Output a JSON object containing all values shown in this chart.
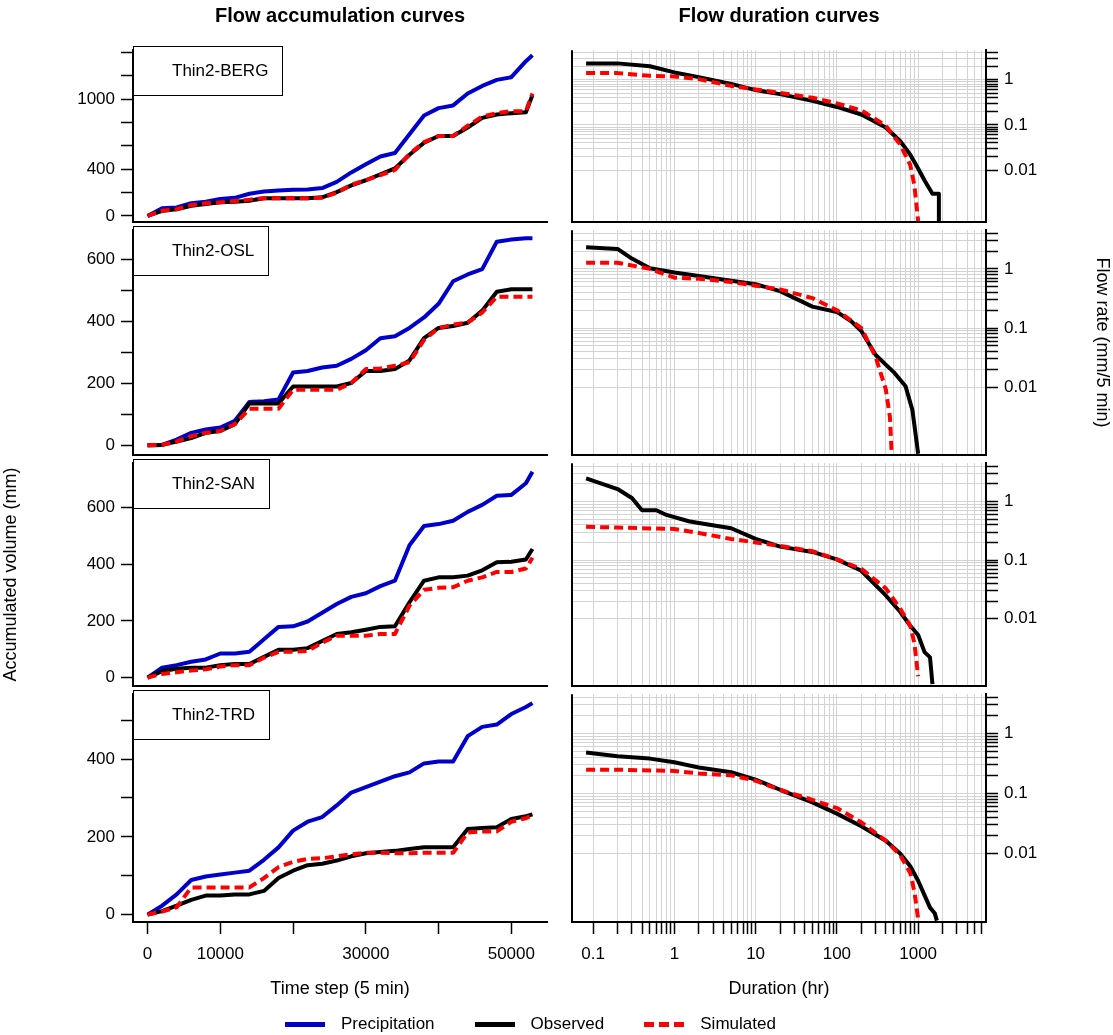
{
  "chart_data": [
    {
      "type": "line",
      "title": "Flow accumulation curves",
      "annotations": [
        "Thin2-BERG"
      ],
      "tick_labels": "y",
      "x": [
        0,
        2000,
        4000,
        6000,
        8000,
        10000,
        12000,
        14000,
        16000,
        18000,
        20000,
        22000,
        24000,
        26000,
        28000,
        30000,
        32000,
        34000,
        36000,
        38000,
        40000,
        42000,
        44000,
        46000,
        48000,
        50000,
        52000,
        52900
      ],
      "xlim": [
        -2000,
        54900
      ],
      "ylim": [
        -50,
        1420
      ],
      "yticks": [
        0,
        {
          "value": 200,
          "label": null
        },
        400,
        {
          "value": 600,
          "label": null
        },
        {
          "value": 800,
          "label": null
        },
        1000,
        {
          "value": 1200,
          "label": null
        },
        {
          "value": 1400,
          "label": null
        }
      ],
      "series": [
        {
          "color": "#0000cd",
          "values": [
            0,
            67,
            73,
            110,
            122,
            146,
            155,
            190,
            210,
            219,
            224,
            227,
            239,
            292,
            373,
            443,
            510,
            539,
            700,
            860,
            924,
            947,
            1049,
            1114,
            1166,
            1189,
            1326,
            1376
          ]
        },
        {
          "color": "#000000",
          "values": [
            0,
            44,
            58,
            87,
            102,
            117,
            122,
            131,
            152,
            152,
            152,
            152,
            160,
            204,
            262,
            306,
            356,
            408,
            525,
            627,
            685,
            685,
            758,
            840,
            869,
            880,
            889,
            1035
          ]
        },
        {
          "color": "#ff0000",
          "line_style": "dashed",
          "values": [
            0,
            44,
            58,
            93,
            108,
            117,
            128,
            140,
            152,
            152,
            152,
            152,
            157,
            198,
            268,
            306,
            350,
            394,
            530,
            633,
            685,
            685,
            773,
            851,
            880,
            898,
            898,
            1049
          ]
        }
      ]
    },
    {
      "type": "line",
      "title": "Flow duration curves",
      "log": "xy",
      "grid": true,
      "tick_labels": "y",
      "xlim": [
        0.055,
        6840
      ],
      "xticks": [
        0.1,
        {
          "value": 0.2,
          "label": null
        },
        {
          "value": 0.3,
          "label": null
        },
        {
          "value": 0.4,
          "label": null
        },
        {
          "value": 0.5,
          "label": null
        },
        {
          "value": 0.6,
          "label": null
        },
        {
          "value": 0.7,
          "label": null
        },
        {
          "value": 0.8,
          "label": null
        },
        {
          "value": 0.9,
          "label": null
        },
        1,
        {
          "value": 2,
          "label": null
        },
        {
          "value": 3,
          "label": null
        },
        {
          "value": 4,
          "label": null
        },
        {
          "value": 5,
          "label": null
        },
        {
          "value": 6,
          "label": null
        },
        {
          "value": 7,
          "label": null
        },
        {
          "value": 8,
          "label": null
        },
        {
          "value": 9,
          "label": null
        },
        10,
        {
          "value": 20,
          "label": null
        },
        {
          "value": 30,
          "label": null
        },
        {
          "value": 40,
          "label": null
        },
        {
          "value": 50,
          "label": null
        },
        {
          "value": 60,
          "label": null
        },
        {
          "value": 70,
          "label": null
        },
        {
          "value": 80,
          "label": null
        },
        {
          "value": 90,
          "label": null
        },
        100,
        {
          "value": 200,
          "label": null
        },
        {
          "value": 300,
          "label": null
        },
        {
          "value": 400,
          "label": null
        },
        {
          "value": 500,
          "label": null
        },
        {
          "value": 600,
          "label": null
        },
        {
          "value": 700,
          "label": null
        },
        {
          "value": 800,
          "label": null
        },
        {
          "value": 900,
          "label": null
        },
        1000,
        {
          "value": 2000,
          "label": null
        },
        {
          "value": 3000,
          "label": null
        },
        {
          "value": 4000,
          "label": null
        },
        {
          "value": 5000,
          "label": null
        },
        {
          "value": 6000,
          "label": null
        }
      ],
      "ylim": [
        0.00072,
        4.5
      ],
      "yticks": [
        0.01,
        {
          "value": 0.02,
          "label": null
        },
        {
          "value": 0.03,
          "label": null
        },
        {
          "value": 0.04,
          "label": null
        },
        {
          "value": 0.05,
          "label": null
        },
        {
          "value": 0.06,
          "label": null
        },
        {
          "value": 0.07,
          "label": null
        },
        {
          "value": 0.08,
          "label": null
        },
        {
          "value": 0.09,
          "label": null
        },
        0.1,
        {
          "value": 0.2,
          "label": null
        },
        {
          "value": 0.3,
          "label": null
        },
        {
          "value": 0.4,
          "label": null
        },
        {
          "value": 0.5,
          "label": null
        },
        {
          "value": 0.6,
          "label": null
        },
        {
          "value": 0.7,
          "label": null
        },
        {
          "value": 0.8,
          "label": null
        },
        {
          "value": 0.9,
          "label": null
        },
        1,
        {
          "value": 2,
          "label": null
        },
        {
          "value": 3,
          "label": null
        },
        {
          "value": 4,
          "label": null
        }
      ],
      "series": [
        {
          "color": "#000000",
          "x": [
            0.082,
            0.2,
            0.5,
            1,
            2,
            5,
            10,
            20,
            50,
            100,
            200,
            400,
            600,
            800,
            1000,
            1200,
            1500,
            1800,
            1800
          ],
          "values": [
            2.3,
            2.3,
            1.99,
            1.45,
            1.14,
            0.81,
            0.59,
            0.48,
            0.34,
            0.25,
            0.17,
            0.088,
            0.044,
            0.022,
            0.0109,
            0.0059,
            0.003,
            0.003,
            0.00075
          ]
        },
        {
          "color": "#ff0000",
          "line_style": "dashed",
          "x": [
            0.082,
            0.2,
            0.5,
            1,
            2,
            5,
            10,
            20,
            50,
            100,
            200,
            400,
            600,
            800,
            900,
            1000
          ],
          "values": [
            1.4,
            1.4,
            1.22,
            1.18,
            1.03,
            0.73,
            0.61,
            0.51,
            0.4,
            0.3,
            0.21,
            0.096,
            0.037,
            0.013,
            0.0046,
            0.00075
          ]
        }
      ]
    },
    {
      "type": "line",
      "annotations": [
        "Thin2-OSL"
      ],
      "tick_labels": "y",
      "x": [
        0,
        2000,
        4000,
        6000,
        8000,
        10000,
        12000,
        14000,
        16000,
        18000,
        20000,
        22000,
        24000,
        26000,
        28000,
        30000,
        32000,
        34000,
        36000,
        38000,
        40000,
        42000,
        44000,
        46000,
        48000,
        50000,
        52000,
        52900
      ],
      "xlim": [
        -2000,
        54900
      ],
      "ylim": [
        -31,
        695
      ],
      "yticks": [
        0,
        {
          "value": 100,
          "label": null
        },
        200,
        {
          "value": 300,
          "label": null
        },
        400,
        {
          "value": 500,
          "label": null
        },
        600
      ],
      "series": [
        {
          "color": "#0000cd",
          "values": [
            0,
            1,
            18,
            40,
            51,
            57,
            79,
            140,
            142,
            148,
            235,
            240,
            251,
            257,
            279,
            307,
            346,
            352,
            379,
            413,
            457,
            530,
            552,
            569,
            658,
            665,
            669,
            669
          ]
        },
        {
          "color": "#000000",
          "values": [
            0,
            1,
            12,
            23,
            40,
            46,
            68,
            135,
            135,
            135,
            190,
            190,
            190,
            190,
            201,
            240,
            240,
            246,
            274,
            346,
            379,
            385,
            396,
            435,
            496,
            504,
            504,
            504
          ]
        },
        {
          "color": "#ff0000",
          "line_style": "dashed",
          "values": [
            0,
            1,
            12,
            29,
            40,
            46,
            68,
            118,
            118,
            118,
            179,
            179,
            179,
            179,
            201,
            246,
            248,
            257,
            268,
            340,
            379,
            390,
            396,
            429,
            480,
            480,
            480,
            480
          ]
        }
      ]
    },
    {
      "type": "line",
      "ylabel": "Flow rate (mm/5 min)",
      "log": "xy",
      "grid": true,
      "tick_labels": "y",
      "xlim": [
        0.055,
        6840
      ],
      "xticks": [
        0.1,
        {
          "value": 0.2,
          "label": null
        },
        {
          "value": 0.3,
          "label": null
        },
        {
          "value": 0.4,
          "label": null
        },
        {
          "value": 0.5,
          "label": null
        },
        {
          "value": 0.6,
          "label": null
        },
        {
          "value": 0.7,
          "label": null
        },
        {
          "value": 0.8,
          "label": null
        },
        {
          "value": 0.9,
          "label": null
        },
        1,
        {
          "value": 2,
          "label": null
        },
        {
          "value": 3,
          "label": null
        },
        {
          "value": 4,
          "label": null
        },
        {
          "value": 5,
          "label": null
        },
        {
          "value": 6,
          "label": null
        },
        {
          "value": 7,
          "label": null
        },
        {
          "value": 8,
          "label": null
        },
        {
          "value": 9,
          "label": null
        },
        10,
        {
          "value": 20,
          "label": null
        },
        {
          "value": 30,
          "label": null
        },
        {
          "value": 40,
          "label": null
        },
        {
          "value": 50,
          "label": null
        },
        {
          "value": 60,
          "label": null
        },
        {
          "value": 70,
          "label": null
        },
        {
          "value": 80,
          "label": null
        },
        {
          "value": 90,
          "label": null
        },
        100,
        {
          "value": 200,
          "label": null
        },
        {
          "value": 300,
          "label": null
        },
        {
          "value": 400,
          "label": null
        },
        {
          "value": 500,
          "label": null
        },
        {
          "value": 600,
          "label": null
        },
        {
          "value": 700,
          "label": null
        },
        {
          "value": 800,
          "label": null
        },
        {
          "value": 900,
          "label": null
        },
        1000,
        {
          "value": 2000,
          "label": null
        },
        {
          "value": 3000,
          "label": null
        },
        {
          "value": 4000,
          "label": null
        },
        {
          "value": 5000,
          "label": null
        },
        {
          "value": 6000,
          "label": null
        }
      ],
      "ylim": [
        0.00072,
        4.5
      ],
      "yticks": [
        0.01,
        {
          "value": 0.02,
          "label": null
        },
        {
          "value": 0.03,
          "label": null
        },
        {
          "value": 0.04,
          "label": null
        },
        {
          "value": 0.05,
          "label": null
        },
        {
          "value": 0.06,
          "label": null
        },
        {
          "value": 0.07,
          "label": null
        },
        {
          "value": 0.08,
          "label": null
        },
        {
          "value": 0.09,
          "label": null
        },
        0.1,
        {
          "value": 0.2,
          "label": null
        },
        {
          "value": 0.3,
          "label": null
        },
        {
          "value": 0.4,
          "label": null
        },
        {
          "value": 0.5,
          "label": null
        },
        {
          "value": 0.6,
          "label": null
        },
        {
          "value": 0.7,
          "label": null
        },
        {
          "value": 0.8,
          "label": null
        },
        {
          "value": 0.9,
          "label": null
        },
        1,
        {
          "value": 2,
          "label": null
        },
        {
          "value": 3,
          "label": null
        },
        {
          "value": 4,
          "label": null
        }
      ],
      "series": [
        {
          "color": "#000000",
          "x": [
            0.082,
            0.2,
            0.3,
            0.5,
            1,
            2,
            5,
            10,
            20,
            50,
            100,
            150,
            200,
            300,
            500,
            700,
            850,
            1000
          ],
          "values": [
            2.32,
            2.17,
            1.49,
            1.02,
            0.87,
            0.76,
            0.63,
            0.55,
            0.42,
            0.23,
            0.187,
            0.13,
            0.089,
            0.035,
            0.018,
            0.0104,
            0.0041,
            0.00075
          ]
        },
        {
          "color": "#ff0000",
          "line_style": "dashed",
          "x": [
            0.082,
            0.2,
            0.5,
            1,
            2,
            5,
            10,
            20,
            50,
            100,
            200,
            300,
            400,
            450,
            470
          ],
          "values": [
            1.27,
            1.27,
            1.0,
            0.71,
            0.68,
            0.6,
            0.52,
            0.45,
            0.32,
            0.2,
            0.1,
            0.0325,
            0.0092,
            0.0031,
            0.00087
          ]
        }
      ]
    },
    {
      "type": "line",
      "ylabel": "Accumulated volume (mm)",
      "annotations": [
        "Thin2-SAN"
      ],
      "tick_labels": "y",
      "x": [
        0,
        2000,
        4000,
        6000,
        8000,
        10000,
        12000,
        14000,
        16000,
        18000,
        20000,
        22000,
        24000,
        26000,
        28000,
        30000,
        32000,
        34000,
        36000,
        38000,
        40000,
        42000,
        44000,
        46000,
        48000,
        50000,
        52000,
        52900
      ],
      "xlim": [
        -2000,
        54900
      ],
      "ylim": [
        -29,
        757
      ],
      "yticks": [
        0,
        200,
        400,
        600
      ],
      "series": [
        {
          "color": "#0000cd",
          "values": [
            0,
            35,
            44,
            56,
            64,
            85,
            85,
            91,
            135,
            179,
            181,
            198,
            229,
            260,
            285,
            298,
            323,
            342,
            467,
            535,
            542,
            554,
            585,
            610,
            642,
            645,
            686,
            727
          ]
        },
        {
          "color": "#000000",
          "values": [
            0,
            23,
            31,
            35,
            35,
            44,
            48,
            48,
            73,
            98,
            98,
            104,
            129,
            154,
            160,
            169,
            179,
            181,
            266,
            342,
            354,
            354,
            360,
            379,
            407,
            409,
            417,
            454
          ]
        },
        {
          "color": "#ff0000",
          "line_style": "dashed",
          "values": [
            0,
            13,
            19,
            25,
            29,
            39,
            44,
            44,
            70,
            91,
            91,
            94,
            123,
            148,
            148,
            148,
            154,
            154,
            254,
            310,
            317,
            319,
            342,
            354,
            373,
            373,
            385,
            423
          ]
        }
      ]
    },
    {
      "type": "line",
      "log": "xy",
      "grid": true,
      "tick_labels": "y",
      "xlim": [
        0.055,
        6840
      ],
      "xticks": [
        0.1,
        {
          "value": 0.2,
          "label": null
        },
        {
          "value": 0.3,
          "label": null
        },
        {
          "value": 0.4,
          "label": null
        },
        {
          "value": 0.5,
          "label": null
        },
        {
          "value": 0.6,
          "label": null
        },
        {
          "value": 0.7,
          "label": null
        },
        {
          "value": 0.8,
          "label": null
        },
        {
          "value": 0.9,
          "label": null
        },
        1,
        {
          "value": 2,
          "label": null
        },
        {
          "value": 3,
          "label": null
        },
        {
          "value": 4,
          "label": null
        },
        {
          "value": 5,
          "label": null
        },
        {
          "value": 6,
          "label": null
        },
        {
          "value": 7,
          "label": null
        },
        {
          "value": 8,
          "label": null
        },
        {
          "value": 9,
          "label": null
        },
        10,
        {
          "value": 20,
          "label": null
        },
        {
          "value": 30,
          "label": null
        },
        {
          "value": 40,
          "label": null
        },
        {
          "value": 50,
          "label": null
        },
        {
          "value": 60,
          "label": null
        },
        {
          "value": 70,
          "label": null
        },
        {
          "value": 80,
          "label": null
        },
        {
          "value": 90,
          "label": null
        },
        100,
        {
          "value": 200,
          "label": null
        },
        {
          "value": 300,
          "label": null
        },
        {
          "value": 400,
          "label": null
        },
        {
          "value": 500,
          "label": null
        },
        {
          "value": 600,
          "label": null
        },
        {
          "value": 700,
          "label": null
        },
        {
          "value": 800,
          "label": null
        },
        {
          "value": 900,
          "label": null
        },
        1000,
        {
          "value": 2000,
          "label": null
        },
        {
          "value": 3000,
          "label": null
        },
        {
          "value": 4000,
          "label": null
        },
        {
          "value": 5000,
          "label": null
        },
        {
          "value": 6000,
          "label": null
        }
      ],
      "ylim": [
        0.00072,
        4.5
      ],
      "yticks": [
        0.01,
        {
          "value": 0.02,
          "label": null
        },
        {
          "value": 0.03,
          "label": null
        },
        {
          "value": 0.04,
          "label": null
        },
        {
          "value": 0.05,
          "label": null
        },
        {
          "value": 0.06,
          "label": null
        },
        {
          "value": 0.07,
          "label": null
        },
        {
          "value": 0.08,
          "label": null
        },
        {
          "value": 0.09,
          "label": null
        },
        0.1,
        {
          "value": 0.2,
          "label": null
        },
        {
          "value": 0.3,
          "label": null
        },
        {
          "value": 0.4,
          "label": null
        },
        {
          "value": 0.5,
          "label": null
        },
        {
          "value": 0.6,
          "label": null
        },
        {
          "value": 0.7,
          "label": null
        },
        {
          "value": 0.8,
          "label": null
        },
        {
          "value": 0.9,
          "label": null
        },
        1,
        {
          "value": 2,
          "label": null
        },
        {
          "value": 3,
          "label": null
        },
        {
          "value": 4,
          "label": null
        }
      ],
      "series": [
        {
          "color": "#000000",
          "x": [
            0.082,
            0.2,
            0.3,
            0.4,
            0.6,
            0.8,
            1.5,
            2,
            5,
            10,
            20,
            50,
            100,
            200,
            400,
            600,
            800,
            1000,
            1200,
            1400,
            1500
          ],
          "values": [
            2.47,
            1.63,
            1.15,
            0.71,
            0.71,
            0.59,
            0.46,
            0.43,
            0.35,
            0.23,
            0.17,
            0.138,
            0.103,
            0.066,
            0.025,
            0.0132,
            0.0076,
            0.0053,
            0.0027,
            0.0022,
            0.00077
          ]
        },
        {
          "color": "#ff0000",
          "line_style": "dashed",
          "x": [
            0.082,
            0.2,
            1,
            2,
            5,
            10,
            20,
            50,
            100,
            200,
            400,
            600,
            800,
            900,
            1000
          ],
          "values": [
            0.37,
            0.36,
            0.34,
            0.29,
            0.23,
            0.2,
            0.175,
            0.142,
            0.103,
            0.071,
            0.033,
            0.015,
            0.0076,
            0.0038,
            0.00105
          ]
        }
      ]
    },
    {
      "type": "line",
      "xlabel": "Time step (5 min)",
      "annotations": [
        "Thin2-TRD"
      ],
      "legend": "bottom",
      "x": [
        0,
        2000,
        4000,
        6000,
        8000,
        10000,
        12000,
        14000,
        16000,
        18000,
        20000,
        22000,
        24000,
        26000,
        28000,
        30000,
        32000,
        34000,
        36000,
        38000,
        40000,
        42000,
        44000,
        46000,
        48000,
        50000,
        52000,
        52900
      ],
      "xlim": [
        -2000,
        54900
      ],
      "xticks": [
        0,
        10000,
        {
          "value": 20000,
          "label": null
        },
        30000,
        {
          "value": 40000,
          "label": null
        },
        50000
      ],
      "ylim": [
        -19,
        567
      ],
      "yticks": [
        0,
        {
          "value": 100,
          "label": null
        },
        200,
        {
          "value": 300,
          "label": null
        },
        400,
        {
          "value": 500,
          "label": null
        }
      ],
      "series": [
        {
          "name": "Precipitation",
          "color": "#0000cd",
          "values": [
            0,
            23,
            52,
            89,
            98,
            103,
            108,
            113,
            141,
            173,
            216,
            239,
            251,
            281,
            314,
            328,
            342,
            356,
            366,
            389,
            394,
            394,
            459,
            483,
            489,
            516,
            534,
            544
          ]
        },
        {
          "name": "Observed",
          "color": "#000000",
          "values": [
            0,
            9,
            23,
            38,
            49,
            49,
            52,
            52,
            61,
            94,
            113,
            127,
            131,
            139,
            150,
            158,
            161,
            164,
            169,
            173,
            173,
            173,
            220,
            223,
            225,
            246,
            253,
            258
          ]
        },
        {
          "name": "Simulated",
          "color": "#ff0000",
          "line_style": "dashed",
          "values": [
            0,
            8,
            19,
            70,
            70,
            70,
            70,
            70,
            94,
            122,
            136,
            143,
            145,
            150,
            155,
            159,
            159,
            158,
            158,
            159,
            159,
            159,
            211,
            214,
            214,
            239,
            248,
            255
          ]
        }
      ]
    },
    {
      "type": "line",
      "xlabel": "Duration (hr)",
      "log": "xy",
      "grid": true,
      "xlim": [
        0.055,
        6840
      ],
      "xticks": [
        0.1,
        {
          "value": 0.2,
          "label": null
        },
        {
          "value": 0.3,
          "label": null
        },
        {
          "value": 0.4,
          "label": null
        },
        {
          "value": 0.5,
          "label": null
        },
        {
          "value": 0.6,
          "label": null
        },
        {
          "value": 0.7,
          "label": null
        },
        {
          "value": 0.8,
          "label": null
        },
        {
          "value": 0.9,
          "label": null
        },
        1,
        {
          "value": 2,
          "label": null
        },
        {
          "value": 3,
          "label": null
        },
        {
          "value": 4,
          "label": null
        },
        {
          "value": 5,
          "label": null
        },
        {
          "value": 6,
          "label": null
        },
        {
          "value": 7,
          "label": null
        },
        {
          "value": 8,
          "label": null
        },
        {
          "value": 9,
          "label": null
        },
        10,
        {
          "value": 20,
          "label": null
        },
        {
          "value": 30,
          "label": null
        },
        {
          "value": 40,
          "label": null
        },
        {
          "value": 50,
          "label": null
        },
        {
          "value": 60,
          "label": null
        },
        {
          "value": 70,
          "label": null
        },
        {
          "value": 80,
          "label": null
        },
        {
          "value": 90,
          "label": null
        },
        100,
        {
          "value": 200,
          "label": null
        },
        {
          "value": 300,
          "label": null
        },
        {
          "value": 400,
          "label": null
        },
        {
          "value": 500,
          "label": null
        },
        {
          "value": 600,
          "label": null
        },
        {
          "value": 700,
          "label": null
        },
        {
          "value": 800,
          "label": null
        },
        {
          "value": 900,
          "label": null
        },
        1000,
        {
          "value": 2000,
          "label": null
        },
        {
          "value": 3000,
          "label": null
        },
        {
          "value": 4000,
          "label": null
        },
        {
          "value": 5000,
          "label": null
        },
        {
          "value": 6000,
          "label": null
        }
      ],
      "ylim": [
        0.00072,
        4.5
      ],
      "yticks": [
        0.01,
        {
          "value": 0.02,
          "label": null
        },
        {
          "value": 0.03,
          "label": null
        },
        {
          "value": 0.04,
          "label": null
        },
        {
          "value": 0.05,
          "label": null
        },
        {
          "value": 0.06,
          "label": null
        },
        {
          "value": 0.07,
          "label": null
        },
        {
          "value": 0.08,
          "label": null
        },
        {
          "value": 0.09,
          "label": null
        },
        0.1,
        {
          "value": 0.2,
          "label": null
        },
        {
          "value": 0.3,
          "label": null
        },
        {
          "value": 0.4,
          "label": null
        },
        {
          "value": 0.5,
          "label": null
        },
        {
          "value": 0.6,
          "label": null
        },
        {
          "value": 0.7,
          "label": null
        },
        {
          "value": 0.8,
          "label": null
        },
        {
          "value": 0.9,
          "label": null
        },
        1,
        {
          "value": 2,
          "label": null
        },
        {
          "value": 3,
          "label": null
        },
        {
          "value": 4,
          "label": null
        }
      ],
      "series": [
        {
          "color": "#000000",
          "x": [
            0.082,
            0.2,
            0.5,
            1,
            2,
            5,
            10,
            20,
            50,
            100,
            200,
            400,
            600,
            800,
            1000,
            1200,
            1400,
            1600,
            1700
          ],
          "values": [
            0.48,
            0.415,
            0.38,
            0.33,
            0.27,
            0.225,
            0.17,
            0.115,
            0.071,
            0.046,
            0.0284,
            0.0163,
            0.01,
            0.0061,
            0.0035,
            0.002,
            0.00125,
            0.00101,
            0.00076
          ]
        },
        {
          "color": "#ff0000",
          "line_style": "dashed",
          "x": [
            0.082,
            0.2,
            1,
            2,
            5,
            10,
            20,
            50,
            100,
            200,
            400,
            600,
            800,
            900,
            1000
          ],
          "values": [
            0.248,
            0.248,
            0.237,
            0.215,
            0.2,
            0.163,
            0.115,
            0.078,
            0.057,
            0.033,
            0.0163,
            0.0094,
            0.0047,
            0.0023,
            0.00081
          ]
        }
      ]
    }
  ]
}
